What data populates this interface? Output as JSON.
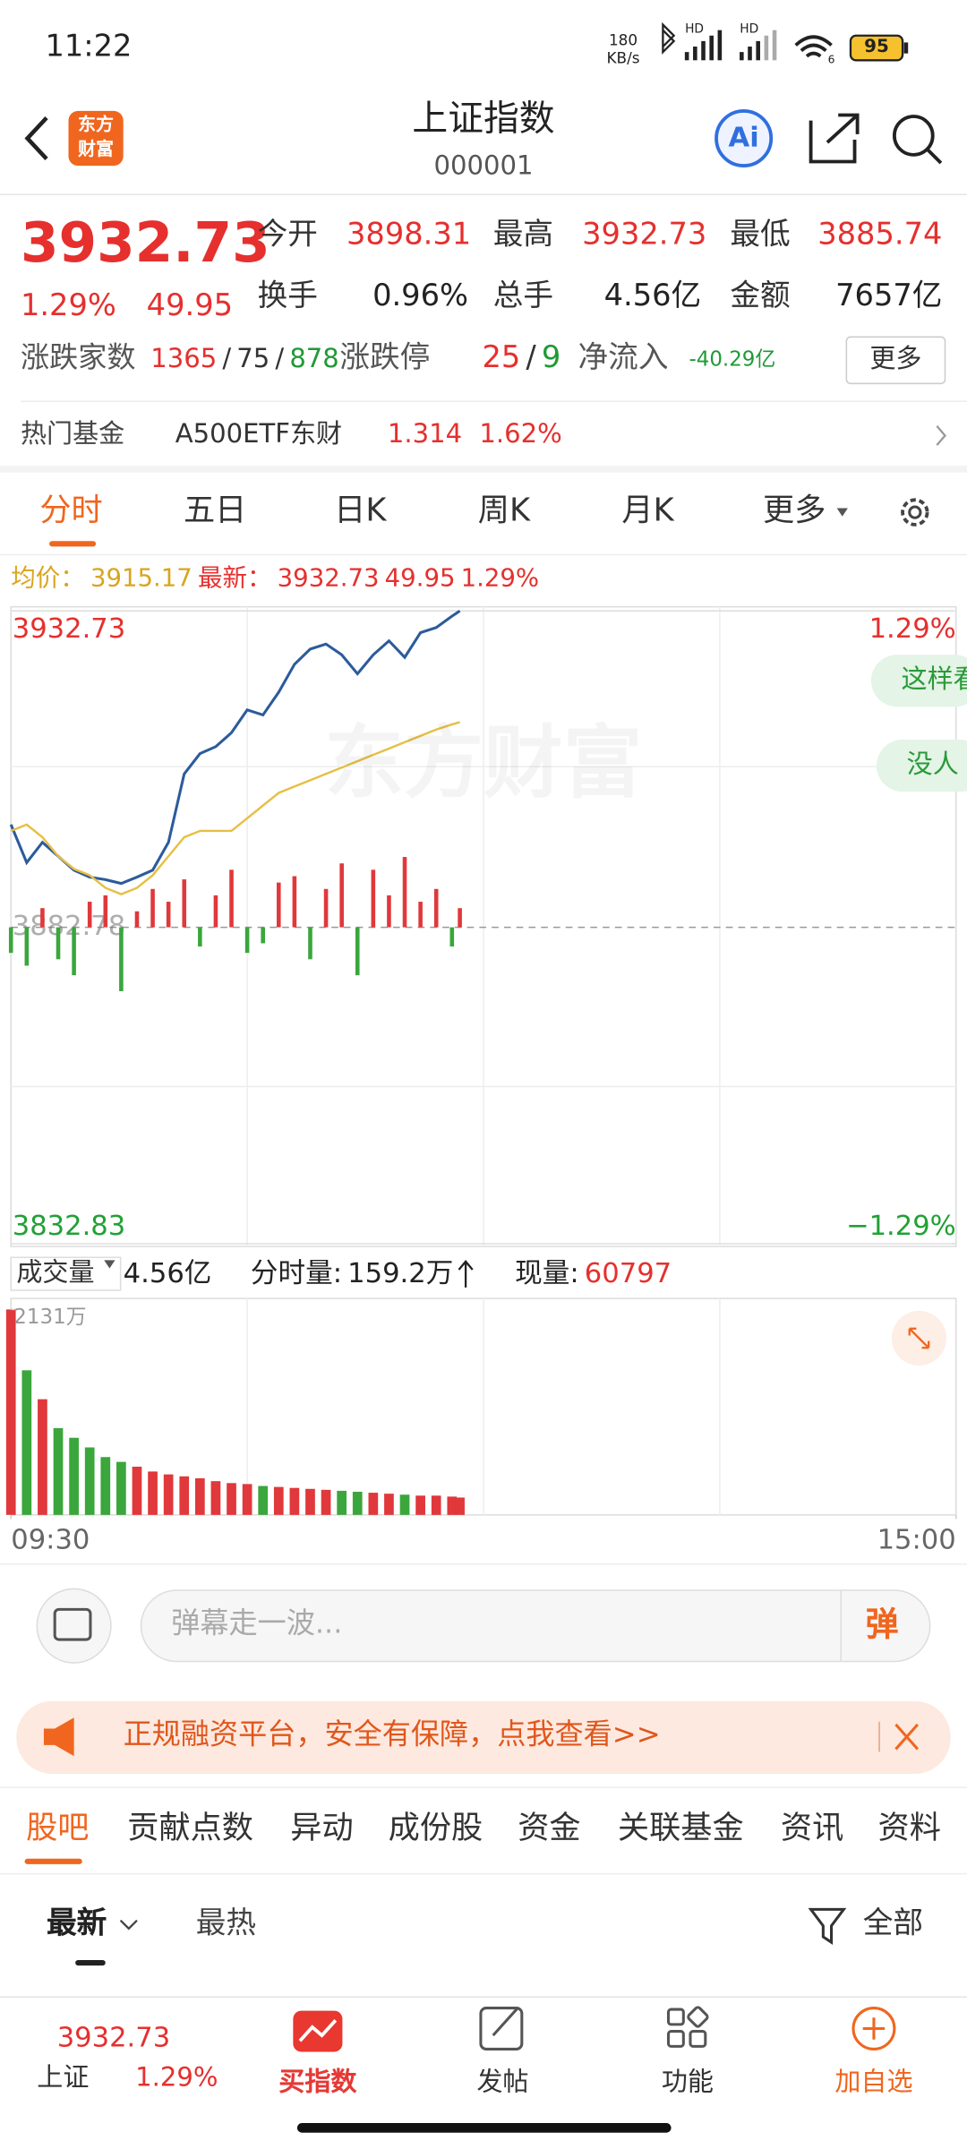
{
  "status": {
    "time": "11:22",
    "speed": "180",
    "speed_unit": "KB/s",
    "hd": "HD",
    "wifi": "6",
    "battery": "95"
  },
  "header": {
    "title": "上证指数",
    "code": "000001",
    "logo": [
      "东方",
      "财富"
    ],
    "ai": "Ai"
  },
  "quote": {
    "price": "3932.73",
    "change_pct": "1.29%",
    "change": "49.95",
    "fields": [
      {
        "label": "今开",
        "value": "3898.31"
      },
      {
        "label": "最高",
        "value": "3932.73"
      },
      {
        "label": "最低",
        "value": "3885.74"
      },
      {
        "label": "换手",
        "value": "0.96%"
      },
      {
        "label": "总手",
        "value": "4.56亿"
      },
      {
        "label": "金额",
        "value": "7657亿"
      }
    ],
    "breadth": {
      "label": "涨跌家数",
      "up": "1365",
      "sep": "/",
      "flat": "75",
      "down": "878"
    },
    "limit": {
      "label": "涨跌停",
      "up": "25",
      "down": "9"
    },
    "inflow": {
      "label": "净流入",
      "value": "-40.29亿"
    },
    "more": "更多"
  },
  "hot_fund": {
    "label": "热门基金",
    "name": "A500ETF东财",
    "price": "1.314",
    "pct": "1.62%"
  },
  "tabs": [
    "分时",
    "五日",
    "日K",
    "周K",
    "月K",
    "更多"
  ],
  "info": {
    "avg_label": "均价：",
    "avg": "3915.17",
    "last_label": "最新：",
    "last": "3932.73",
    "change": "49.95",
    "pct": "1.29%"
  },
  "bubbles": [
    "这样看",
    "没人"
  ],
  "watermark": "东方财富",
  "volume_bar": {
    "label": "成交量",
    "total": "4.56亿",
    "minute_label": "分时量:",
    "minute": "159.2万",
    "now_label": "现量:",
    "now": "60797"
  },
  "comment": {
    "placeholder": "弹幕走一波...",
    "button": "弹"
  },
  "ad": "正规融资平台，安全有保障，点我查看>>",
  "bottom_tabs": [
    "股吧",
    "贡献点数",
    "异动",
    "成份股",
    "资金",
    "关联基金",
    "资讯",
    "资料"
  ],
  "sort": {
    "latest": "最新",
    "hot": "最热",
    "filter": "全部"
  },
  "nav": {
    "price": "3932.73",
    "name": "上证",
    "pct": "1.29%",
    "items": [
      "买指数",
      "发帖",
      "功能",
      "加自选"
    ]
  },
  "chart_data": [
    {
      "type": "line",
      "x": [
        0,
        4,
        8,
        12,
        16,
        20,
        24,
        28,
        32,
        36,
        40,
        44,
        48,
        52,
        56,
        60,
        64,
        68,
        72,
        76,
        80,
        84,
        88,
        92,
        96,
        100,
        104,
        108,
        112,
        114
      ],
      "xlim": [
        0,
        240
      ],
      "ylim": [
        3832.83,
        3932.73
      ],
      "yticks": [
        3832.83,
        3882.78,
        3932.73
      ],
      "y2lim": [
        -1.29,
        1.29
      ],
      "y2ticks": [
        {
          "value": -1.29,
          "label": "−1.29%"
        },
        {
          "value": 1.29,
          "label": "1.29%"
        }
      ],
      "series": [
        {
          "color": "#2c5b9c",
          "values": [
            3899,
            3893,
            3896.2,
            3894,
            3891.8,
            3890.7,
            3890.3,
            3889.7,
            3890.7,
            3891.8,
            3896.2,
            3907,
            3910.2,
            3911.3,
            3913.5,
            3917.1,
            3916.3,
            3919.9,
            3924.3,
            3926.7,
            3927.5,
            3925.8,
            3922.8,
            3925.8,
            3928,
            3925.4,
            3929.3,
            3930.1,
            3931.9,
            3932.73
          ]
        },
        {
          "color": "#e6bf45",
          "values": [
            3898,
            3899,
            3897,
            3894,
            3892,
            3891,
            3889,
            3888,
            3889,
            3891,
            3894,
            3897,
            3898,
            3898,
            3898,
            3900,
            3902,
            3904,
            3905,
            3906,
            3907,
            3908,
            3909,
            3910,
            3911,
            3912,
            3913,
            3914,
            3914.8,
            3915.17
          ]
        }
      ],
      "flow": {
        "ylim": [
          -30,
          30
        ],
        "up_color": "#e0383b",
        "down_color": "#3aa63c",
        "values": [
          -8,
          -12,
          6,
          -10,
          -15,
          8,
          10,
          -20,
          5,
          12,
          8,
          15,
          -6,
          10,
          18,
          -8,
          -5,
          14,
          16,
          -10,
          12,
          20,
          -15,
          18,
          10,
          22,
          8,
          12,
          -6,
          6
        ]
      }
    },
    {
      "type": "bar",
      "x": [
        0,
        4,
        8,
        12,
        16,
        20,
        24,
        28,
        32,
        36,
        40,
        44,
        48,
        52,
        56,
        60,
        64,
        68,
        72,
        76,
        80,
        84,
        88,
        92,
        96,
        100,
        104,
        108,
        112,
        114
      ],
      "xlim": [
        0,
        240
      ],
      "xticks": [
        {
          "value": 0,
          "label": "09:30"
        },
        {
          "value": 240,
          "label": "15:00"
        }
      ],
      "ylim": [
        0,
        2131
      ],
      "yticks": [
        {
          "value": 2131,
          "label": "2131万"
        }
      ],
      "up_color": "#e0383b",
      "down_color": "#3aa63c",
      "values": [
        2131,
        1500,
        1200,
        900,
        800,
        700,
        600,
        550,
        500,
        450,
        420,
        400,
        380,
        350,
        330,
        320,
        300,
        290,
        280,
        270,
        260,
        250,
        240,
        230,
        220,
        210,
        200,
        200,
        190,
        180
      ]
    }
  ]
}
